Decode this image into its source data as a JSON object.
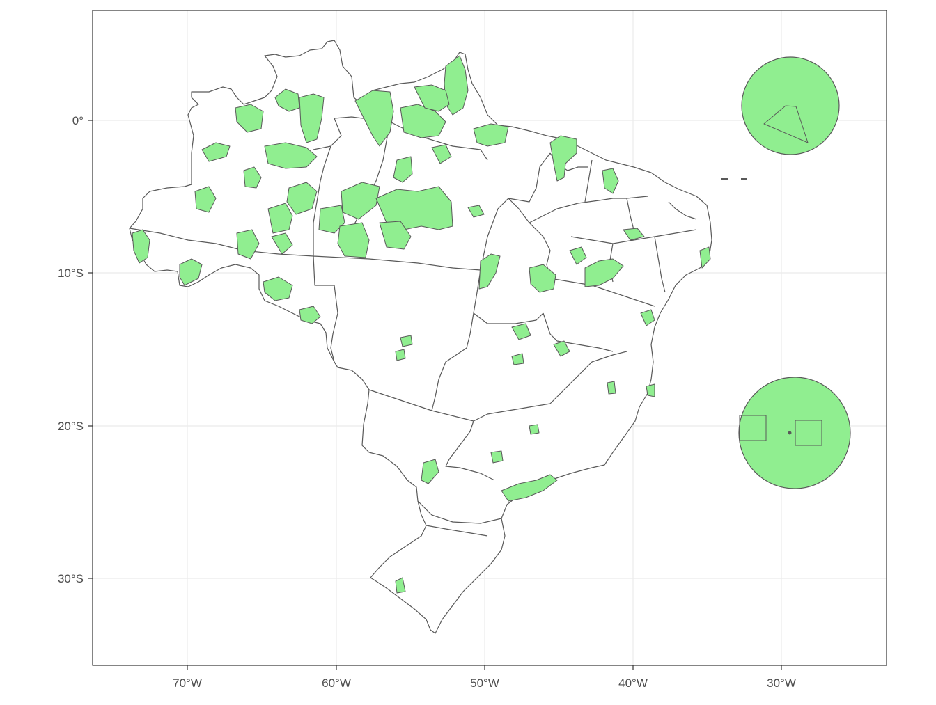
{
  "map": {
    "x_axis": {
      "ticks": [
        "70°W",
        "60°W",
        "50°W",
        "40°W",
        "30°W"
      ]
    },
    "y_axis": {
      "ticks": [
        "0°",
        "10°S",
        "20°S",
        "30°S"
      ]
    },
    "colors": {
      "protected_area_fill": "#90ee90",
      "boundary_stroke": "#595959",
      "land_fill": "#ffffff",
      "grid": "#ebebeb",
      "panel_border": "#333333"
    },
    "grid": true,
    "features": {
      "country": "Brazil",
      "state_boundaries": true,
      "protected_areas": "filled green polygons",
      "island_groups": [
        "Fernando de Noronha / Atol das Rocas (circle, near 0°)",
        "Trindade e Martim Vaz (circle, near 20°S)"
      ]
    }
  }
}
